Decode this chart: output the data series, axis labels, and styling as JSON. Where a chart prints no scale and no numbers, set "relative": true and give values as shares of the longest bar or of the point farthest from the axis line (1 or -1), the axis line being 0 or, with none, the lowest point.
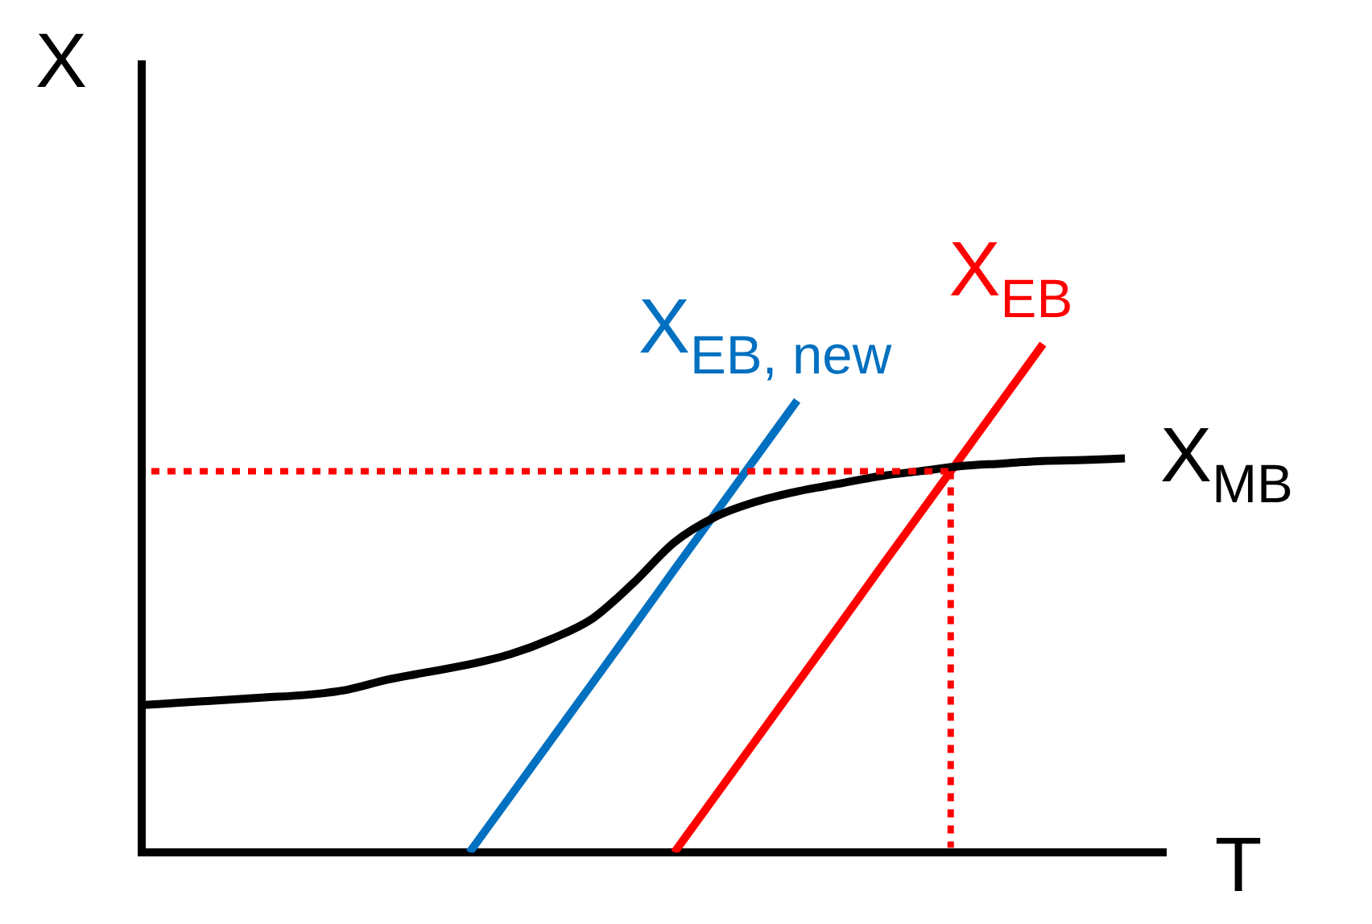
{
  "chart_data": {
    "type": "line",
    "relative": true,
    "xlabel": "T",
    "ylabel": "X",
    "categories": [
      null,
      null,
      null,
      null,
      null,
      null,
      null,
      null,
      null,
      null,
      null,
      null,
      null,
      null,
      null,
      null,
      null,
      null,
      null,
      null,
      null,
      null,
      null,
      null,
      null,
      null
    ],
    "series": [
      {
        "name": "X$_{MB}$",
        "color": "#000000",
        "values": [
          0.29,
          0.295,
          0.3,
          0.305,
          0.31,
          0.32,
          0.34,
          0.355,
          0.37,
          0.39,
          0.42,
          0.46,
          0.53,
          0.61,
          0.66,
          0.69,
          0.71,
          0.725,
          0.74,
          0.75,
          0.76,
          0.765,
          0.77,
          0.772,
          0.775,
          null
        ]
      },
      {
        "name": "X$_{EB, new}$",
        "color": "#0070c0",
        "values": [
          null,
          null,
          null,
          null,
          null,
          null,
          null,
          null,
          0,
          0.111,
          0.222,
          0.333,
          0.444,
          0.556,
          0.667,
          0.778,
          0.889,
          null,
          null,
          null,
          null,
          null,
          null,
          null,
          null,
          null
        ]
      },
      {
        "name": "X$_{EB}$",
        "color": "#ff0000",
        "values": [
          null,
          null,
          null,
          null,
          null,
          null,
          null,
          null,
          null,
          null,
          null,
          null,
          null,
          0,
          0.111,
          0.222,
          0.333,
          0.444,
          0.556,
          0.667,
          0.778,
          0.889,
          1.0,
          null,
          null,
          null
        ]
      }
    ],
    "ref_lines": [
      {
        "axis": "y",
        "value": 0.75,
        "color": "#ff0000",
        "line_style": "dotted"
      }
    ],
    "legend": false
  }
}
